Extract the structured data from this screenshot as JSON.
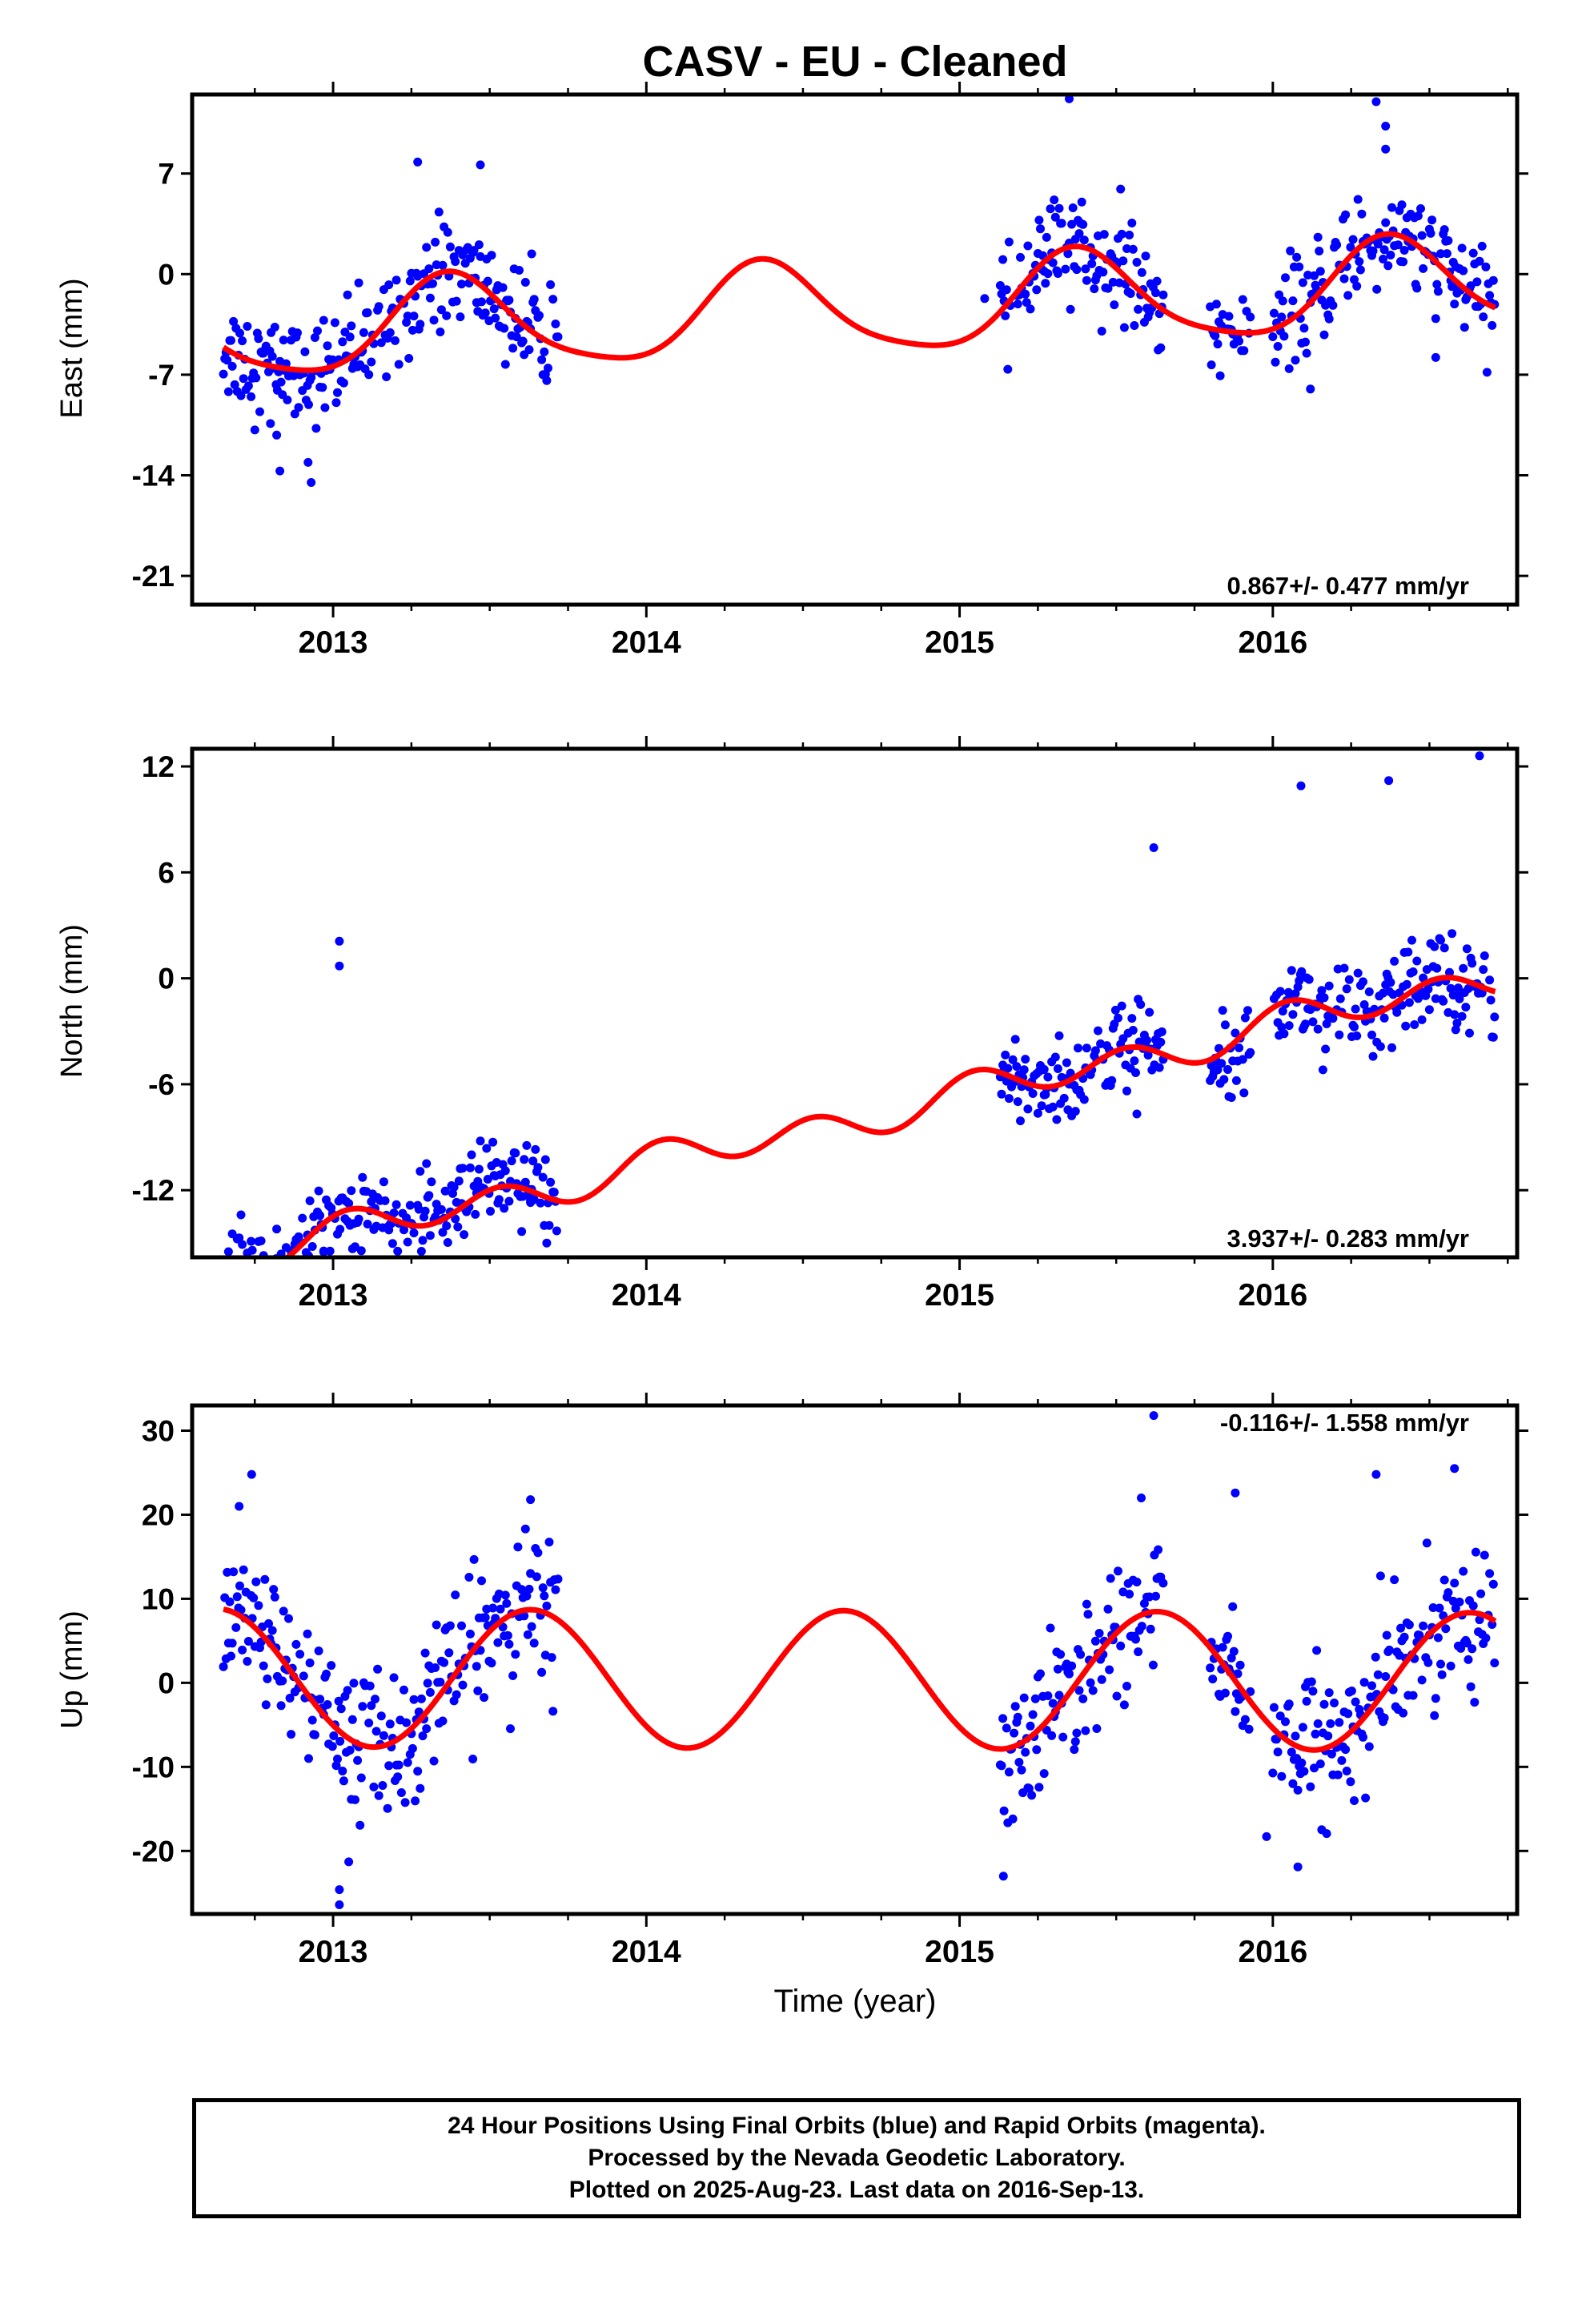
{
  "title": "CASV  - EU - Cleaned",
  "xlabel": "Time (year)",
  "colors": {
    "points": "#0000ff",
    "fit": "#ff0000",
    "axes": "#000000"
  },
  "footer": {
    "line1": "24 Hour Positions Using Final Orbits (blue) and Rapid Orbits (magenta).",
    "line2": "Processed by the Nevada Geodetic Laboratory.",
    "line3": "Plotted on 2025-Aug-23. Last data on 2016-Sep-13."
  },
  "chart_data": [
    {
      "type": "scatter",
      "component": "east",
      "ylabel": "East (mm)",
      "xlim": [
        2012.55,
        2016.78
      ],
      "ylim": [
        -23,
        12.5
      ],
      "yticks": [
        -21,
        -14,
        -7,
        0,
        7
      ],
      "xticks": [
        2013,
        2014,
        2015,
        2016
      ],
      "grid": false,
      "rate_label": "0.867+/- 0.477 mm/yr",
      "rate_position": "bottom-right",
      "fit": {
        "slope": 0.867,
        "offset": -2.6,
        "annual_amp": 3.2,
        "annual_peak": 2013.38,
        "semiannual_amp": 0.6,
        "semiannual_peak": 2013.35
      },
      "data_segments": [
        {
          "start": 2012.65,
          "end": 2013.72,
          "step": 0.004,
          "scatter_sd": 1.8
        },
        {
          "start": 2015.13,
          "end": 2015.65,
          "step": 0.004,
          "scatter_sd": 1.8
        },
        {
          "start": 2015.8,
          "end": 2015.93,
          "step": 0.004,
          "scatter_sd": 1.2
        },
        {
          "start": 2016.0,
          "end": 2016.71,
          "step": 0.004,
          "scatter_sd": 1.8
        }
      ],
      "outliers": [
        {
          "x": 2012.82,
          "y": -11.2
        },
        {
          "x": 2012.83,
          "y": -13.7
        },
        {
          "x": 2012.8,
          "y": -10.4
        },
        {
          "x": 2012.92,
          "y": -13.1
        },
        {
          "x": 2012.93,
          "y": -14.5
        },
        {
          "x": 2013.27,
          "y": 7.8
        },
        {
          "x": 2013.47,
          "y": 7.6
        },
        {
          "x": 2015.35,
          "y": 12.2
        },
        {
          "x": 2016.12,
          "y": -8.0
        },
        {
          "x": 2016.33,
          "y": 12.0
        },
        {
          "x": 2016.36,
          "y": 8.7
        },
        {
          "x": 2016.36,
          "y": 10.3
        },
        {
          "x": 2016.52,
          "y": -5.8
        },
        {
          "x": 2015.08,
          "y": -1.7
        }
      ]
    },
    {
      "type": "scatter",
      "component": "north",
      "ylabel": "North (mm)",
      "xlim": [
        2012.55,
        2016.78
      ],
      "ylim": [
        -15.8,
        13
      ],
      "yticks": [
        -12,
        -6,
        0,
        6,
        12
      ],
      "xticks": [
        2013,
        2014,
        2015,
        2016
      ],
      "grid": false,
      "rate_label": "3.937+/- 0.283 mm/yr",
      "rate_position": "bottom-right",
      "fit": {
        "slope": 3.937,
        "offset": -8.6,
        "annual_amp": 0.4,
        "annual_peak": 2013.15,
        "semiannual_amp": 0.9,
        "semiannual_peak": 2013.04
      },
      "data_segments": [
        {
          "start": 2012.65,
          "end": 2013.72,
          "step": 0.004,
          "scatter_sd": 1.3
        },
        {
          "start": 2015.13,
          "end": 2015.65,
          "step": 0.004,
          "scatter_sd": 1.3
        },
        {
          "start": 2015.8,
          "end": 2015.93,
          "step": 0.004,
          "scatter_sd": 1.0
        },
        {
          "start": 2016.0,
          "end": 2016.71,
          "step": 0.004,
          "scatter_sd": 1.3
        }
      ],
      "outliers": [
        {
          "x": 2013.02,
          "y": 2.1
        },
        {
          "x": 2013.02,
          "y": 0.7
        },
        {
          "x": 2012.7,
          "y": -14.7
        },
        {
          "x": 2012.82,
          "y": -14.2
        },
        {
          "x": 2012.97,
          "y": -15.5
        },
        {
          "x": 2013.63,
          "y": -12.7
        },
        {
          "x": 2015.27,
          "y": -6.6
        },
        {
          "x": 2015.88,
          "y": -3.1
        },
        {
          "x": 2016.66,
          "y": 12.6
        },
        {
          "x": 2016.09,
          "y": 10.9
        },
        {
          "x": 2016.37,
          "y": 11.2
        },
        {
          "x": 2015.62,
          "y": 7.4
        },
        {
          "x": 2016.05,
          "y": -0.8
        }
      ]
    },
    {
      "type": "scatter",
      "component": "up",
      "ylabel": "Up (mm)",
      "xlim": [
        2012.55,
        2016.78
      ],
      "ylim": [
        -27.5,
        33
      ],
      "yticks": [
        -20,
        -10,
        0,
        10,
        20,
        30
      ],
      "xticks": [
        2013,
        2014,
        2015,
        2016
      ],
      "grid": false,
      "rate_label": "-0.116+/- 1.558 mm/yr",
      "rate_position": "top-right",
      "fit": {
        "slope": -0.116,
        "offset": 0.4,
        "annual_amp": 8.2,
        "annual_peak": 2013.63,
        "semiannual_amp": 0.0,
        "semiannual_peak": 2013.0
      },
      "data_segments": [
        {
          "start": 2012.65,
          "end": 2013.72,
          "step": 0.004,
          "scatter_sd": 4.3
        },
        {
          "start": 2015.13,
          "end": 2015.65,
          "step": 0.004,
          "scatter_sd": 4.3
        },
        {
          "start": 2015.8,
          "end": 2015.93,
          "step": 0.004,
          "scatter_sd": 3.5
        },
        {
          "start": 2016.0,
          "end": 2016.71,
          "step": 0.004,
          "scatter_sd": 4.3
        }
      ],
      "outliers": [
        {
          "x": 2012.74,
          "y": 24.8
        },
        {
          "x": 2012.7,
          "y": 21.0
        },
        {
          "x": 2013.02,
          "y": -26.4
        },
        {
          "x": 2013.02,
          "y": -24.6
        },
        {
          "x": 2013.05,
          "y": -21.3
        },
        {
          "x": 2013.63,
          "y": 21.8
        },
        {
          "x": 2015.14,
          "y": -23.0
        },
        {
          "x": 2015.58,
          "y": 22.0
        },
        {
          "x": 2015.62,
          "y": 31.8
        },
        {
          "x": 2015.88,
          "y": 22.6
        },
        {
          "x": 2016.08,
          "y": -21.9
        },
        {
          "x": 2016.33,
          "y": 24.8
        },
        {
          "x": 2016.58,
          "y": 25.5
        },
        {
          "x": 2015.98,
          "y": -18.3
        }
      ]
    }
  ]
}
